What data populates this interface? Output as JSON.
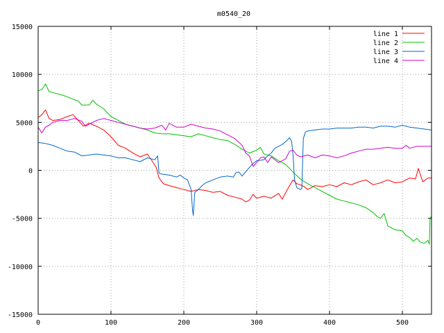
{
  "chart_data": {
    "type": "line",
    "title": "m0540_20",
    "xlabel": "",
    "ylabel": "",
    "xlim": [
      0,
      540
    ],
    "ylim": [
      -15000,
      15000
    ],
    "x_ticks": [
      0,
      100,
      200,
      300,
      400,
      500
    ],
    "y_ticks": [
      -15000,
      -10000,
      -5000,
      0,
      5000,
      10000,
      15000
    ],
    "grid": true,
    "legend_position": "top-right",
    "series": [
      {
        "name": "line 1",
        "color": "#ff0000",
        "points": [
          [
            0,
            5500
          ],
          [
            5,
            5800
          ],
          [
            10,
            6300
          ],
          [
            15,
            5400
          ],
          [
            20,
            5200
          ],
          [
            30,
            5300
          ],
          [
            40,
            5600
          ],
          [
            48,
            5800
          ],
          [
            55,
            5200
          ],
          [
            62,
            4600
          ],
          [
            70,
            4900
          ],
          [
            80,
            4600
          ],
          [
            90,
            4200
          ],
          [
            100,
            3500
          ],
          [
            110,
            2600
          ],
          [
            120,
            2300
          ],
          [
            130,
            1800
          ],
          [
            140,
            1400
          ],
          [
            150,
            1700
          ],
          [
            158,
            800
          ],
          [
            162,
            300
          ],
          [
            166,
            -800
          ],
          [
            172,
            -1400
          ],
          [
            180,
            -1600
          ],
          [
            190,
            -1800
          ],
          [
            200,
            -2000
          ],
          [
            210,
            -2200
          ],
          [
            220,
            -2000
          ],
          [
            230,
            -2100
          ],
          [
            240,
            -2300
          ],
          [
            250,
            -2200
          ],
          [
            260,
            -2600
          ],
          [
            270,
            -2800
          ],
          [
            280,
            -3000
          ],
          [
            285,
            -3300
          ],
          [
            290,
            -3100
          ],
          [
            295,
            -2500
          ],
          [
            300,
            -2900
          ],
          [
            310,
            -2700
          ],
          [
            320,
            -2900
          ],
          [
            330,
            -2400
          ],
          [
            335,
            -3000
          ],
          [
            340,
            -2300
          ],
          [
            345,
            -1600
          ],
          [
            350,
            -1000
          ],
          [
            355,
            -1400
          ],
          [
            360,
            -1500
          ],
          [
            365,
            -1700
          ],
          [
            370,
            -2000
          ],
          [
            380,
            -1600
          ],
          [
            390,
            -1700
          ],
          [
            400,
            -1500
          ],
          [
            410,
            -1700
          ],
          [
            420,
            -1300
          ],
          [
            430,
            -1500
          ],
          [
            440,
            -1200
          ],
          [
            450,
            -1000
          ],
          [
            460,
            -1500
          ],
          [
            470,
            -1300
          ],
          [
            480,
            -1000
          ],
          [
            490,
            -1300
          ],
          [
            500,
            -1200
          ],
          [
            510,
            -800
          ],
          [
            518,
            -900
          ],
          [
            522,
            200
          ],
          [
            528,
            -1200
          ],
          [
            535,
            -800
          ],
          [
            540,
            -800
          ]
        ]
      },
      {
        "name": "line 2",
        "color": "#00c000",
        "points": [
          [
            0,
            8300
          ],
          [
            5,
            8400
          ],
          [
            10,
            9000
          ],
          [
            15,
            8200
          ],
          [
            25,
            8000
          ],
          [
            35,
            7800
          ],
          [
            45,
            7500
          ],
          [
            55,
            7200
          ],
          [
            60,
            6800
          ],
          [
            70,
            6800
          ],
          [
            75,
            7300
          ],
          [
            80,
            6900
          ],
          [
            90,
            6400
          ],
          [
            100,
            5600
          ],
          [
            110,
            5200
          ],
          [
            120,
            4800
          ],
          [
            130,
            4600
          ],
          [
            140,
            4400
          ],
          [
            150,
            4200
          ],
          [
            160,
            3900
          ],
          [
            170,
            3800
          ],
          [
            180,
            3800
          ],
          [
            190,
            3700
          ],
          [
            200,
            3600
          ],
          [
            210,
            3500
          ],
          [
            220,
            3800
          ],
          [
            230,
            3600
          ],
          [
            240,
            3400
          ],
          [
            250,
            3200
          ],
          [
            260,
            3100
          ],
          [
            270,
            2700
          ],
          [
            280,
            2200
          ],
          [
            290,
            1800
          ],
          [
            300,
            2100
          ],
          [
            305,
            2400
          ],
          [
            310,
            1700
          ],
          [
            320,
            1500
          ],
          [
            330,
            1000
          ],
          [
            340,
            600
          ],
          [
            350,
            -200
          ],
          [
            360,
            -900
          ],
          [
            370,
            -1400
          ],
          [
            380,
            -1800
          ],
          [
            390,
            -2200
          ],
          [
            400,
            -2600
          ],
          [
            410,
            -3000
          ],
          [
            420,
            -3200
          ],
          [
            430,
            -3400
          ],
          [
            440,
            -3600
          ],
          [
            450,
            -3900
          ],
          [
            460,
            -4400
          ],
          [
            465,
            -4800
          ],
          [
            470,
            -5000
          ],
          [
            475,
            -4500
          ],
          [
            480,
            -5800
          ],
          [
            490,
            -6200
          ],
          [
            500,
            -6300
          ],
          [
            505,
            -6800
          ],
          [
            510,
            -7000
          ],
          [
            515,
            -7400
          ],
          [
            520,
            -7100
          ],
          [
            525,
            -7500
          ],
          [
            530,
            -7600
          ],
          [
            535,
            -7300
          ],
          [
            537,
            -7700
          ],
          [
            538,
            -5000
          ],
          [
            540,
            -4800
          ]
        ]
      },
      {
        "name": "line 3",
        "color": "#0066cc",
        "points": [
          [
            0,
            2900
          ],
          [
            10,
            2800
          ],
          [
            20,
            2600
          ],
          [
            30,
            2300
          ],
          [
            40,
            2000
          ],
          [
            50,
            1900
          ],
          [
            55,
            1700
          ],
          [
            60,
            1500
          ],
          [
            70,
            1600
          ],
          [
            80,
            1700
          ],
          [
            90,
            1600
          ],
          [
            100,
            1500
          ],
          [
            110,
            1300
          ],
          [
            120,
            1300
          ],
          [
            130,
            1100
          ],
          [
            140,
            900
          ],
          [
            150,
            1300
          ],
          [
            160,
            1100
          ],
          [
            164,
            1500
          ],
          [
            166,
            -300
          ],
          [
            170,
            -400
          ],
          [
            180,
            -500
          ],
          [
            190,
            -700
          ],
          [
            195,
            -500
          ],
          [
            200,
            -800
          ],
          [
            205,
            -1000
          ],
          [
            210,
            -2000
          ],
          [
            212,
            -4200
          ],
          [
            213,
            -4700
          ],
          [
            215,
            -2300
          ],
          [
            220,
            -2000
          ],
          [
            225,
            -1600
          ],
          [
            230,
            -1300
          ],
          [
            240,
            -1000
          ],
          [
            250,
            -700
          ],
          [
            260,
            -600
          ],
          [
            268,
            -700
          ],
          [
            272,
            -200
          ],
          [
            276,
            -200
          ],
          [
            280,
            -600
          ],
          [
            290,
            300
          ],
          [
            295,
            700
          ],
          [
            300,
            1000
          ],
          [
            310,
            1100
          ],
          [
            315,
            1500
          ],
          [
            320,
            1800
          ],
          [
            325,
            2300
          ],
          [
            330,
            2500
          ],
          [
            335,
            2700
          ],
          [
            340,
            3000
          ],
          [
            345,
            3400
          ],
          [
            348,
            3000
          ],
          [
            350,
            1500
          ],
          [
            352,
            -1000
          ],
          [
            355,
            -1800
          ],
          [
            360,
            -2000
          ],
          [
            362,
            -1900
          ],
          [
            364,
            3300
          ],
          [
            367,
            4000
          ],
          [
            370,
            4100
          ],
          [
            380,
            4200
          ],
          [
            390,
            4300
          ],
          [
            400,
            4300
          ],
          [
            410,
            4400
          ],
          [
            420,
            4400
          ],
          [
            430,
            4400
          ],
          [
            440,
            4500
          ],
          [
            450,
            4500
          ],
          [
            460,
            4400
          ],
          [
            470,
            4600
          ],
          [
            480,
            4600
          ],
          [
            490,
            4500
          ],
          [
            500,
            4700
          ],
          [
            510,
            4500
          ],
          [
            520,
            4400
          ],
          [
            530,
            4300
          ],
          [
            540,
            4200
          ]
        ]
      },
      {
        "name": "line 4",
        "color": "#cc00cc",
        "points": [
          [
            0,
            4500
          ],
          [
            5,
            3900
          ],
          [
            10,
            4500
          ],
          [
            15,
            4700
          ],
          [
            20,
            5000
          ],
          [
            30,
            5200
          ],
          [
            40,
            5200
          ],
          [
            50,
            5400
          ],
          [
            60,
            5100
          ],
          [
            65,
            4600
          ],
          [
            70,
            4800
          ],
          [
            80,
            5200
          ],
          [
            90,
            5400
          ],
          [
            100,
            5200
          ],
          [
            110,
            5000
          ],
          [
            120,
            4800
          ],
          [
            130,
            4600
          ],
          [
            140,
            4400
          ],
          [
            150,
            4300
          ],
          [
            160,
            4400
          ],
          [
            170,
            4700
          ],
          [
            175,
            4200
          ],
          [
            180,
            4900
          ],
          [
            190,
            4500
          ],
          [
            200,
            4500
          ],
          [
            210,
            4800
          ],
          [
            220,
            4600
          ],
          [
            230,
            4400
          ],
          [
            240,
            4300
          ],
          [
            250,
            4100
          ],
          [
            260,
            3700
          ],
          [
            270,
            3300
          ],
          [
            280,
            2600
          ],
          [
            285,
            1800
          ],
          [
            290,
            1500
          ],
          [
            295,
            400
          ],
          [
            300,
            800
          ],
          [
            305,
            1300
          ],
          [
            310,
            1400
          ],
          [
            315,
            800
          ],
          [
            320,
            1400
          ],
          [
            330,
            800
          ],
          [
            340,
            1200
          ],
          [
            345,
            2000
          ],
          [
            350,
            2100
          ],
          [
            355,
            1600
          ],
          [
            360,
            1400
          ],
          [
            370,
            1600
          ],
          [
            380,
            1300
          ],
          [
            390,
            1600
          ],
          [
            400,
            1500
          ],
          [
            410,
            1300
          ],
          [
            420,
            1500
          ],
          [
            430,
            1800
          ],
          [
            440,
            2000
          ],
          [
            450,
            2200
          ],
          [
            460,
            2200
          ],
          [
            470,
            2300
          ],
          [
            480,
            2400
          ],
          [
            490,
            2300
          ],
          [
            500,
            2300
          ],
          [
            505,
            2600
          ],
          [
            510,
            2300
          ],
          [
            520,
            2500
          ],
          [
            530,
            2500
          ],
          [
            540,
            2500
          ]
        ]
      }
    ]
  }
}
